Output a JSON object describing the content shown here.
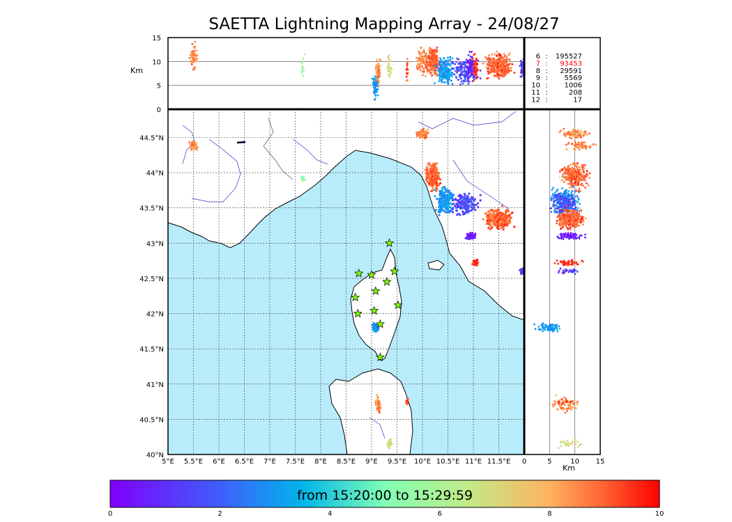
{
  "title": "SAETTA Lightning Mapping Array - 24/08/27",
  "map": {
    "lon_ticks": [
      "5°E",
      "5.5°E",
      "6°E",
      "6.5°E",
      "7°E",
      "7.5°E",
      "8°E",
      "8.5°E",
      "9°E",
      "9.5°E",
      "10°E",
      "10.5°E",
      "11°E",
      "11.5°E"
    ],
    "lat_ticks": [
      "40°N",
      "40.5°N",
      "41°N",
      "41.5°N",
      "42°N",
      "42.5°N",
      "43°N",
      "43.5°N",
      "44°N",
      "44.5°N"
    ],
    "lon_range": [
      5,
      12
    ],
    "lat_range": [
      40,
      44.9
    ],
    "sea_color": "#b9ecfb",
    "grid": true
  },
  "altitude_panel": {
    "unit_label": "Km",
    "y_ticks": [
      "15",
      "10",
      "5",
      "0"
    ],
    "range_km": [
      0,
      15
    ]
  },
  "side_panel": {
    "unit_label": "Km",
    "x_ticks": [
      "0",
      "5",
      "10",
      "15"
    ],
    "range_km": [
      0,
      15
    ]
  },
  "station_counts": [
    {
      "stations": "6",
      "sep": ":",
      "count": "195527",
      "color": "#000000"
    },
    {
      "stations": "7",
      "sep": ":",
      "count": "93453",
      "color": "#ff0000"
    },
    {
      "stations": "8",
      "sep": ":",
      "count": "29591",
      "color": "#000000"
    },
    {
      "stations": "9",
      "sep": ":",
      "count": "5569",
      "color": "#000000"
    },
    {
      "stations": "10",
      "sep": ":",
      "count": "1006",
      "color": "#000000"
    },
    {
      "stations": "11",
      "sep": ":",
      "count": "208",
      "color": "#000000"
    },
    {
      "stations": "12",
      "sep": ":",
      "count": "17",
      "color": "#000000"
    }
  ],
  "colorbar": {
    "label": "from 15:20:00 to 15:29:59",
    "ticks": [
      "0",
      "2",
      "4",
      "6",
      "8",
      "10"
    ],
    "range": [
      0,
      10
    ],
    "colormap": "rainbow"
  },
  "stations": [
    {
      "lon": 9.35,
      "lat": 43.0
    },
    {
      "lon": 8.75,
      "lat": 42.57
    },
    {
      "lon": 9.0,
      "lat": 42.55
    },
    {
      "lon": 9.45,
      "lat": 42.6
    },
    {
      "lon": 9.3,
      "lat": 42.45
    },
    {
      "lon": 9.08,
      "lat": 42.32
    },
    {
      "lon": 8.68,
      "lat": 42.23
    },
    {
      "lon": 9.52,
      "lat": 42.12
    },
    {
      "lon": 9.05,
      "lat": 42.04
    },
    {
      "lon": 8.73,
      "lat": 42.0
    },
    {
      "lon": 9.17,
      "lat": 41.85
    },
    {
      "lon": 9.17,
      "lat": 41.38
    }
  ],
  "lightning_clusters": [
    {
      "lon": 5.5,
      "lat": 44.38,
      "lon_spread": 0.12,
      "lat_spread": 0.08,
      "alt": 11,
      "t": 8.5,
      "n": 60
    },
    {
      "lon": 7.65,
      "lat": 43.92,
      "lon_spread": 0.05,
      "lat_spread": 0.04,
      "alt": 9,
      "t": 6,
      "n": 14
    },
    {
      "lon": 10.0,
      "lat": 44.55,
      "lon_spread": 0.15,
      "lat_spread": 0.1,
      "alt": 10,
      "t": 8.5,
      "n": 90
    },
    {
      "lon": 10.2,
      "lat": 43.95,
      "lon_spread": 0.18,
      "lat_spread": 0.25,
      "alt": 10,
      "t": 9,
      "n": 260
    },
    {
      "lon": 10.45,
      "lat": 43.6,
      "lon_spread": 0.25,
      "lat_spread": 0.25,
      "alt": 8,
      "t": 3,
      "n": 220
    },
    {
      "lon": 10.85,
      "lat": 43.55,
      "lon_spread": 0.35,
      "lat_spread": 0.2,
      "alt": 8,
      "t": 1.5,
      "n": 140
    },
    {
      "lon": 11.5,
      "lat": 43.35,
      "lon_spread": 0.35,
      "lat_spread": 0.2,
      "alt": 9,
      "t": 9,
      "n": 320
    },
    {
      "lon": 10.95,
      "lat": 43.1,
      "lon_spread": 0.12,
      "lat_spread": 0.07,
      "alt": 9,
      "t": 0.5,
      "n": 70
    },
    {
      "lon": 11.05,
      "lat": 42.72,
      "lon_spread": 0.08,
      "lat_spread": 0.06,
      "alt": 9,
      "t": 9.5,
      "n": 50
    },
    {
      "lon": 11.95,
      "lat": 42.6,
      "lon_spread": 0.05,
      "lat_spread": 0.06,
      "alt": 9,
      "t": 1,
      "n": 30
    },
    {
      "lon": 9.08,
      "lat": 41.8,
      "lon_spread": 0.09,
      "lat_spread": 0.08,
      "alt": 5,
      "t": 3,
      "n": 80
    },
    {
      "lon": 9.13,
      "lat": 40.7,
      "lon_spread": 0.06,
      "lat_spread": 0.18,
      "alt": 8,
      "t": 8.5,
      "n": 60
    },
    {
      "lon": 9.7,
      "lat": 40.75,
      "lon_spread": 0.03,
      "lat_spread": 0.08,
      "alt": 8,
      "t": 9,
      "n": 20
    },
    {
      "lon": 9.36,
      "lat": 40.16,
      "lon_spread": 0.06,
      "lat_spread": 0.08,
      "alt": 9,
      "t": 7,
      "n": 30
    }
  ]
}
